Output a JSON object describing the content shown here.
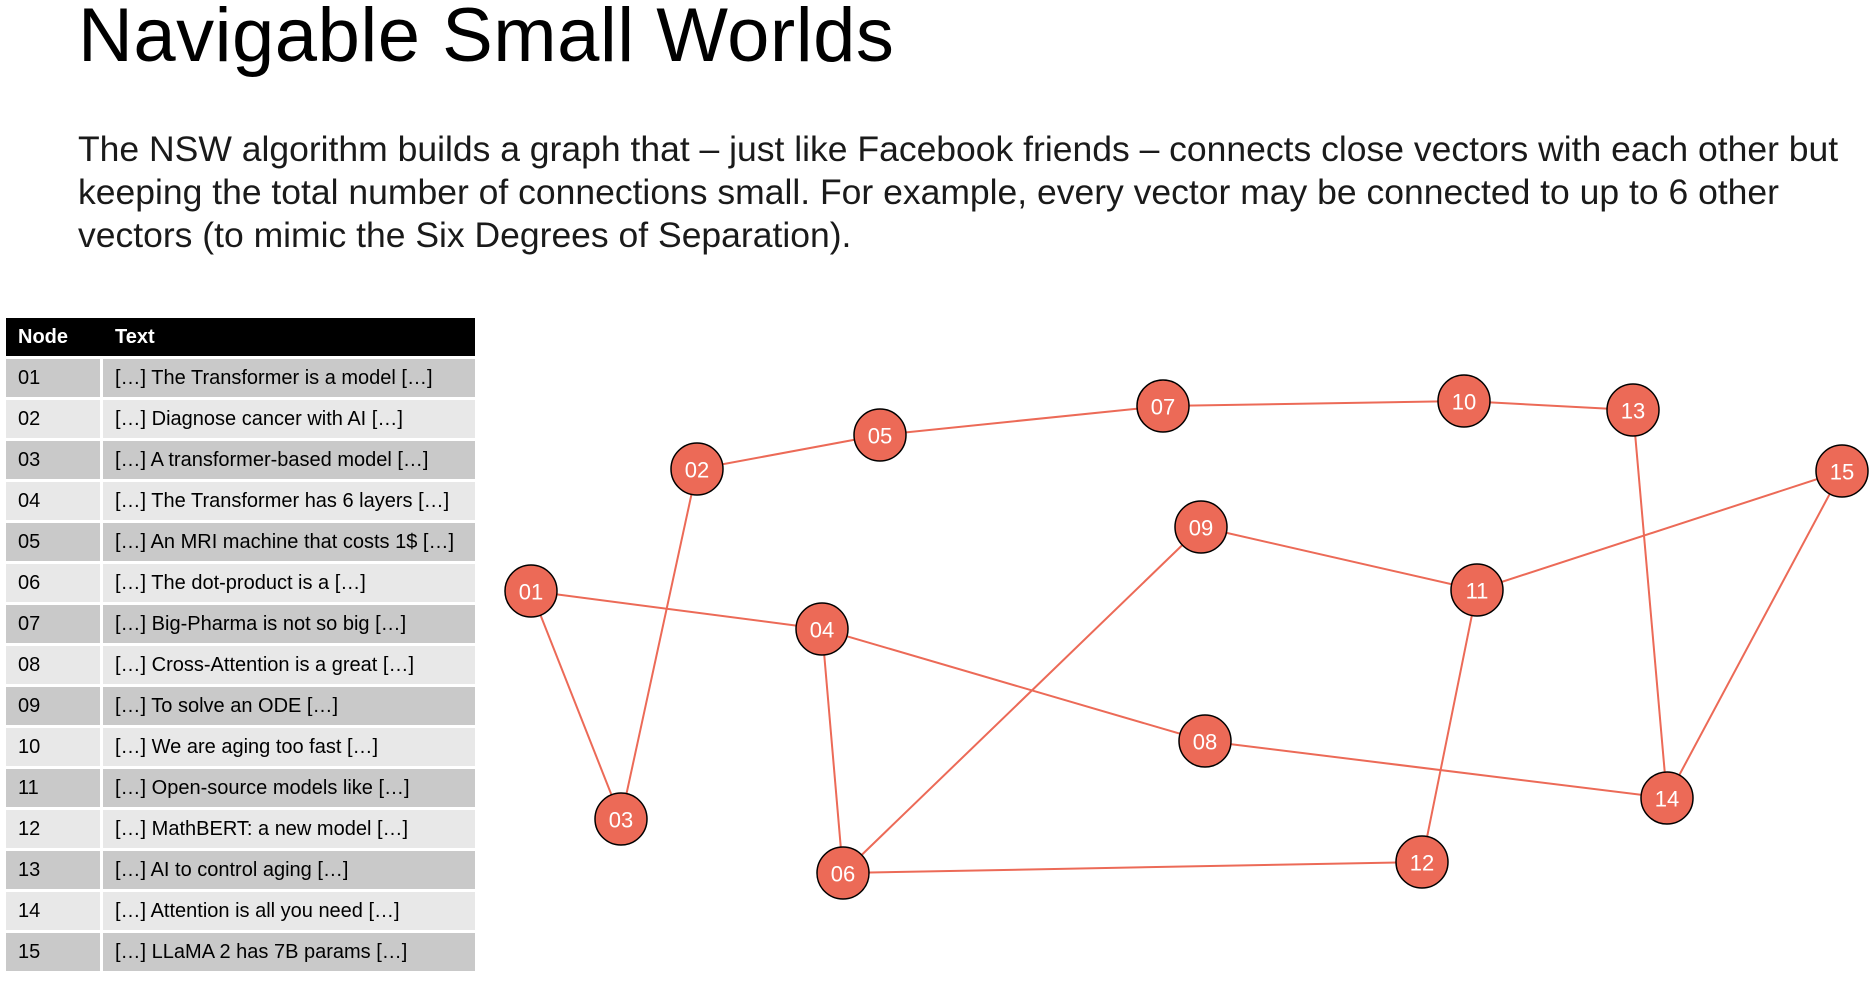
{
  "title": "Navigable Small Worlds",
  "paragraph": "The NSW algorithm builds a graph that – just like Facebook friends – connects close vectors with each other but keeping the total number of connections small. For example, every vector may be connected to up to 6 other vectors (to mimic the Six Degrees of Separation).",
  "table": {
    "headers": [
      "Node",
      "Text"
    ],
    "rows": [
      {
        "node": "01",
        "text": "[…] The Transformer is a model […]"
      },
      {
        "node": "02",
        "text": "[…] Diagnose cancer with AI […]"
      },
      {
        "node": "03",
        "text": "[…] A transformer-based model […]"
      },
      {
        "node": "04",
        "text": "[…] The Transformer has 6 layers […]"
      },
      {
        "node": "05",
        "text": "[…] An MRI machine that costs 1$ […]"
      },
      {
        "node": "06",
        "text": "[…] The dot-product is a […]"
      },
      {
        "node": "07",
        "text": "[…] Big-Pharma is not so big […]"
      },
      {
        "node": "08",
        "text": "[…] Cross-Attention is a great […]"
      },
      {
        "node": "09",
        "text": "[…] To solve an ODE […]"
      },
      {
        "node": "10",
        "text": "[…] We are aging too fast […]"
      },
      {
        "node": "11",
        "text": "[…] Open-source models like […]"
      },
      {
        "node": "12",
        "text": "[…] MathBERT: a new model […]"
      },
      {
        "node": "13",
        "text": "[…] AI to control aging […]"
      },
      {
        "node": "14",
        "text": "[…] Attention is all you need […]"
      },
      {
        "node": "15",
        "text": "[…] LLaMA 2 has 7B params […]"
      }
    ]
  },
  "graph": {
    "node_color": "#ec6a57",
    "edge_color": "#ec6a57",
    "nodes": [
      "01",
      "02",
      "03",
      "04",
      "05",
      "06",
      "07",
      "08",
      "09",
      "10",
      "11",
      "12",
      "13",
      "14",
      "15"
    ],
    "edges": [
      [
        "01",
        "04"
      ],
      [
        "01",
        "03"
      ],
      [
        "02",
        "03"
      ],
      [
        "02",
        "05"
      ],
      [
        "05",
        "07"
      ],
      [
        "07",
        "10"
      ],
      [
        "10",
        "13"
      ],
      [
        "13",
        "14"
      ],
      [
        "15",
        "14"
      ],
      [
        "15",
        "11"
      ],
      [
        "09",
        "11"
      ],
      [
        "09",
        "06"
      ],
      [
        "04",
        "06"
      ],
      [
        "04",
        "08"
      ],
      [
        "08",
        "14"
      ],
      [
        "06",
        "12"
      ],
      [
        "11",
        "12"
      ]
    ]
  }
}
